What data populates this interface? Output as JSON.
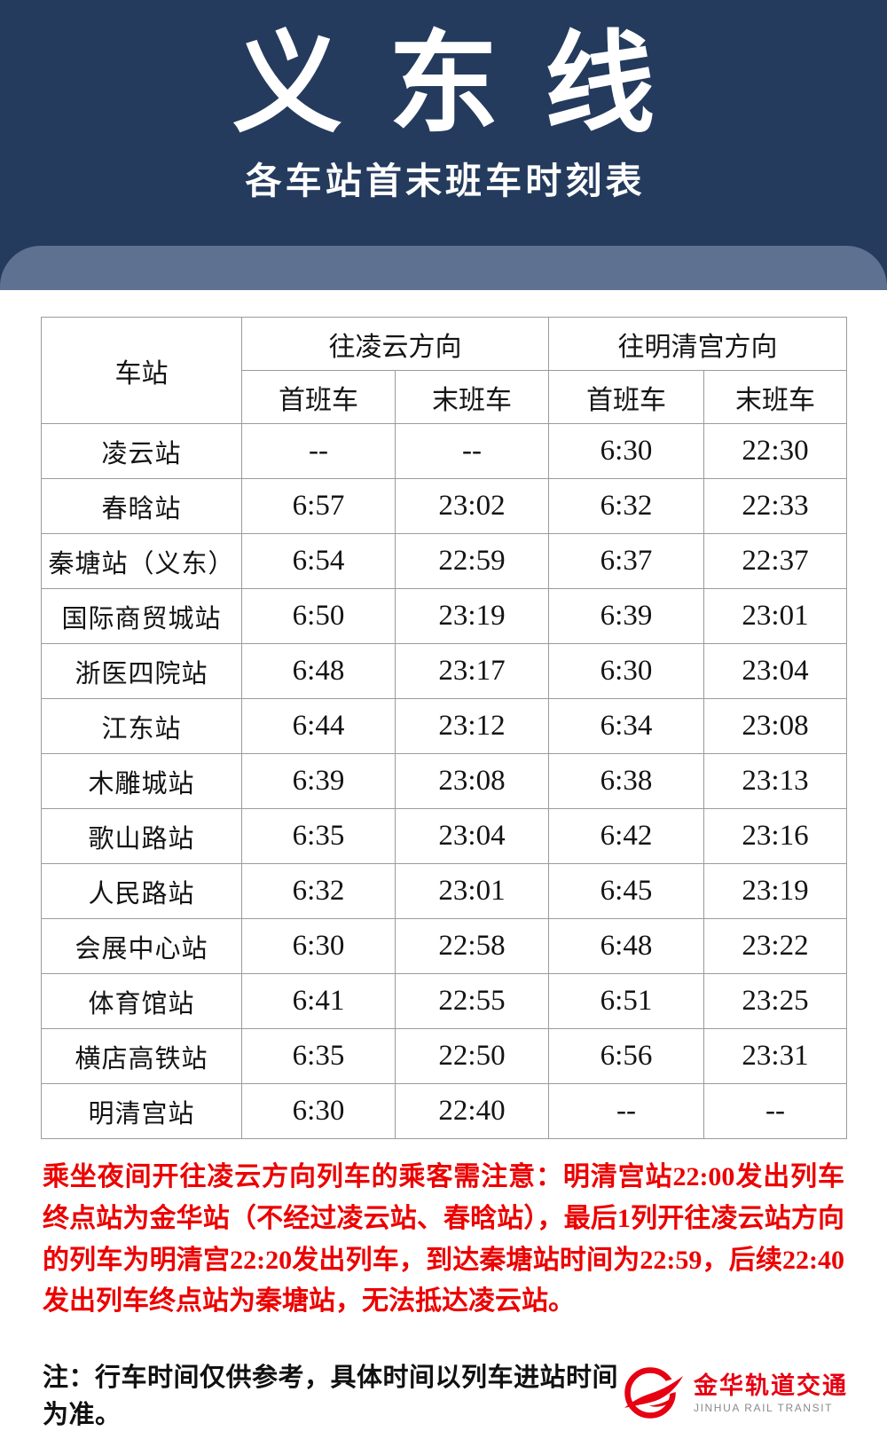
{
  "header": {
    "title": "义东线",
    "subtitle": "各车站首末班车时刻表"
  },
  "table": {
    "station_header": "车站",
    "direction_headers": [
      "往凌云方向",
      "往明清宫方向"
    ],
    "sub_headers": [
      "首班车",
      "末班车",
      "首班车",
      "末班车"
    ],
    "rows": [
      {
        "station": "凌云站",
        "times": [
          "--",
          "--",
          "6:30",
          "22:30"
        ]
      },
      {
        "station": "春晗站",
        "times": [
          "6:57",
          "23:02",
          "6:32",
          "22:33"
        ]
      },
      {
        "station": "秦塘站（义东）",
        "times": [
          "6:54",
          "22:59",
          "6:37",
          "22:37"
        ]
      },
      {
        "station": "国际商贸城站",
        "times": [
          "6:50",
          "23:19",
          "6:39",
          "23:01"
        ]
      },
      {
        "station": "浙医四院站",
        "times": [
          "6:48",
          "23:17",
          "6:30",
          "23:04"
        ]
      },
      {
        "station": "江东站",
        "times": [
          "6:44",
          "23:12",
          "6:34",
          "23:08"
        ]
      },
      {
        "station": "木雕城站",
        "times": [
          "6:39",
          "23:08",
          "6:38",
          "23:13"
        ]
      },
      {
        "station": "歌山路站",
        "times": [
          "6:35",
          "23:04",
          "6:42",
          "23:16"
        ]
      },
      {
        "station": "人民路站",
        "times": [
          "6:32",
          "23:01",
          "6:45",
          "23:19"
        ]
      },
      {
        "station": "会展中心站",
        "times": [
          "6:30",
          "22:58",
          "6:48",
          "23:22"
        ]
      },
      {
        "station": "体育馆站",
        "times": [
          "6:41",
          "22:55",
          "6:51",
          "23:25"
        ]
      },
      {
        "station": "横店高铁站",
        "times": [
          "6:35",
          "22:50",
          "6:56",
          "23:31"
        ]
      },
      {
        "station": "明清宫站",
        "times": [
          "6:30",
          "22:40",
          "--",
          "--"
        ]
      }
    ]
  },
  "notice": "乘坐夜间开往凌云方向列车的乘客需注意：明清宫站22:00发出列车终点站为金华站（不经过凌云站、春晗站），最后1列开往凌云站方向的列车为明清宫22:20发出列车，到达秦塘站时间为22:59，后续22:40发出列车终点站为秦塘站，无法抵达凌云站。",
  "footer": {
    "note": "注：行车时间仅供参考，具体时间以列车进站时间为准。",
    "logo_cn": "金华轨道交通",
    "logo_en": "JINHUA RAIL TRANSIT"
  },
  "colors": {
    "header_bg": "#243B5E",
    "band_bg": "#5E7191",
    "notice_red": "#EC0000",
    "logo_red": "#E60012",
    "table_border": "#9B9B9B"
  }
}
